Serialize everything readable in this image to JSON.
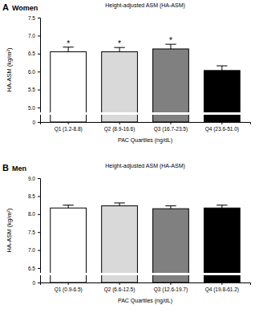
{
  "chart_data": [
    {
      "type": "bar",
      "panel_label": "A",
      "title": "Women",
      "subtitle": "Height-adjusted ASM (HA-ASM)",
      "y_label": "HA-ASM (kg/m²)",
      "x_label": "PAC Quartiles (ng/dL)",
      "categories": [
        "Q1 (1.2-8.8)",
        "Q2 (8.9-16.6)",
        "Q3 (16.7-23.5)",
        "Q4 (23.6-51.0)"
      ],
      "values": [
        6.55,
        6.55,
        6.63,
        6.03
      ],
      "errors": [
        0.13,
        0.12,
        0.13,
        0.13
      ],
      "colors": [
        "#ffffff",
        "#d9d9d9",
        "#808080",
        "#000000"
      ],
      "ylim": [
        0,
        7.5
      ],
      "yticks": [
        0,
        {
          "value": 5,
          "label": "5.0"
        },
        {
          "value": 5.5,
          "label": "5.5"
        },
        {
          "value": 6,
          "label": "6.0"
        },
        {
          "value": 6.5,
          "label": "6.5"
        },
        {
          "value": 7,
          "label": "7.0"
        },
        {
          "value": 7.5,
          "label": "7.5"
        }
      ],
      "annotations": [
        {
          "category": "Q1 (1.2-8.8)",
          "text": "*"
        },
        {
          "category": "Q2 (8.9-16.6)",
          "text": "*"
        },
        {
          "category": "Q3 (16.7-23.5)",
          "text": "*"
        }
      ],
      "grid": false
    },
    {
      "type": "bar",
      "panel_label": "B",
      "title": "Men",
      "subtitle": "Height-adjusted ASM (HA-ASM)",
      "y_label": "HA-ASM (kg/m²)",
      "x_label": "PAC Quartiles (ng/dL)",
      "categories": [
        "Q1 (0.9-6.5)",
        "Q2 (6.6-12.5)",
        "Q3 (12.6-19.7)",
        "Q4 (19.8-61.2)"
      ],
      "values": [
        8.17,
        8.23,
        8.15,
        8.17
      ],
      "errors": [
        0.08,
        0.08,
        0.08,
        0.08
      ],
      "colors": [
        "#ffffff",
        "#d9d9d9",
        "#808080",
        "#000000"
      ],
      "ylim": [
        0,
        9
      ],
      "yticks": [
        0,
        {
          "value": 6.5,
          "label": "6.5"
        },
        {
          "value": 7,
          "label": "7.0"
        },
        {
          "value": 7.5,
          "label": "7.5"
        },
        {
          "value": 8,
          "label": "8.0"
        },
        {
          "value": 8.5,
          "label": "8.5"
        },
        {
          "value": 9,
          "label": "9.0"
        }
      ],
      "annotations": [],
      "grid": false
    }
  ]
}
